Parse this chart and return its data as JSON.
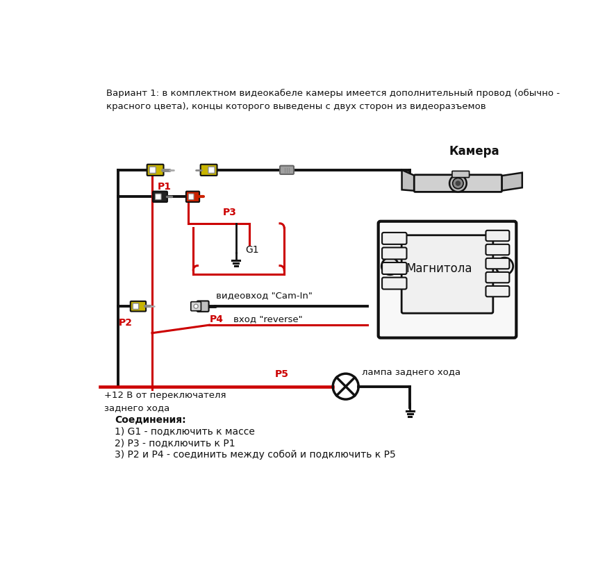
{
  "title_text": "Вариант 1: в комплектном видеокабеле камеры имеется дополнительный провод (обычно -\nкрасного цвета), концы которого выведены с двух сторон из видеоразъемов",
  "connections_title": "Соединения:",
  "connections": [
    "1) G1 - подключить к массе",
    "2) Р3 - подключить к Р1",
    "3) Р2 и Р4 - соединить между собой и подключить к Р5"
  ],
  "label_camera": "Камера",
  "label_magnit": "Магнитола",
  "label_lamp": "лампа заднего хода",
  "label_power": "+12 В от переключателя\nзаднего хода",
  "label_video_in": "видеовход \"Cam-In\"",
  "label_reverse": "вход \"reverse\"",
  "label_p1": "Р1",
  "label_p2": "Р2",
  "label_p3": "Р3",
  "label_p4": "Р4",
  "label_p5": "Р5",
  "label_g1": "G1",
  "bg_color": "#ffffff",
  "wire_black": "#111111",
  "wire_red": "#cc0000",
  "yellow": "#c8b400",
  "gray_light": "#b0b0b0",
  "gray_med": "#888888",
  "outline": "#111111"
}
